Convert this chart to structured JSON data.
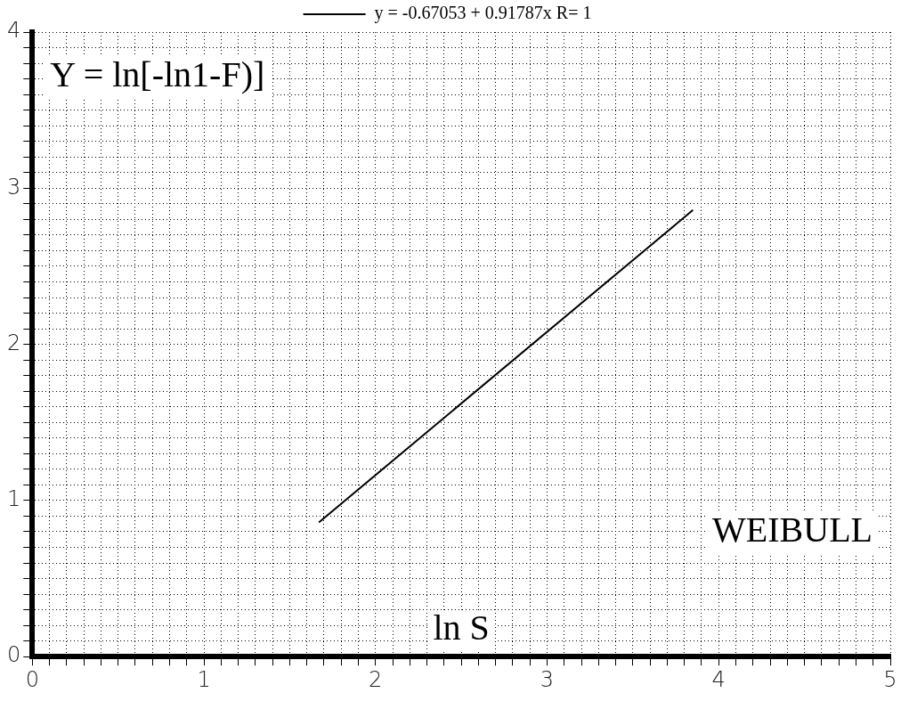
{
  "chart_data": {
    "type": "line",
    "xlabel": "ln S",
    "ylabel": "Y = ln[-ln1-F)]",
    "annotations": [
      "WEIBULL"
    ],
    "legend": "top",
    "grid": true,
    "marker": "none",
    "line_style": "solid",
    "xlim": [
      0,
      5
    ],
    "ylim": [
      0,
      4
    ],
    "xticks": [
      0,
      {
        "value": 0.1,
        "label": null
      },
      {
        "value": 0.2,
        "label": null
      },
      {
        "value": 0.3,
        "label": null
      },
      {
        "value": 0.4,
        "label": null
      },
      {
        "value": 0.5,
        "label": null
      },
      {
        "value": 0.6,
        "label": null
      },
      {
        "value": 0.7,
        "label": null
      },
      {
        "value": 0.8,
        "label": null
      },
      {
        "value": 0.9,
        "label": null
      },
      1,
      {
        "value": 1.1,
        "label": null
      },
      {
        "value": 1.2,
        "label": null
      },
      {
        "value": 1.3,
        "label": null
      },
      {
        "value": 1.4,
        "label": null
      },
      {
        "value": 1.5,
        "label": null
      },
      {
        "value": 1.6,
        "label": null
      },
      {
        "value": 1.7,
        "label": null
      },
      {
        "value": 1.8,
        "label": null
      },
      {
        "value": 1.9,
        "label": null
      },
      2,
      {
        "value": 2.1,
        "label": null
      },
      {
        "value": 2.2,
        "label": null
      },
      {
        "value": 2.3,
        "label": null
      },
      {
        "value": 2.4,
        "label": null
      },
      {
        "value": 2.5,
        "label": null
      },
      {
        "value": 2.6,
        "label": null
      },
      {
        "value": 2.7,
        "label": null
      },
      {
        "value": 2.8,
        "label": null
      },
      {
        "value": 2.9,
        "label": null
      },
      3,
      {
        "value": 3.1,
        "label": null
      },
      {
        "value": 3.2,
        "label": null
      },
      {
        "value": 3.3,
        "label": null
      },
      {
        "value": 3.4,
        "label": null
      },
      {
        "value": 3.5,
        "label": null
      },
      {
        "value": 3.6,
        "label": null
      },
      {
        "value": 3.7,
        "label": null
      },
      {
        "value": 3.8,
        "label": null
      },
      {
        "value": 3.9,
        "label": null
      },
      4,
      {
        "value": 4.1,
        "label": null
      },
      {
        "value": 4.2,
        "label": null
      },
      {
        "value": 4.3,
        "label": null
      },
      {
        "value": 4.4,
        "label": null
      },
      {
        "value": 4.5,
        "label": null
      },
      {
        "value": 4.6,
        "label": null
      },
      {
        "value": 4.7,
        "label": null
      },
      {
        "value": 4.8,
        "label": null
      },
      {
        "value": 4.9,
        "label": null
      },
      5
    ],
    "yticks": [
      0,
      {
        "value": 0.1,
        "label": null
      },
      {
        "value": 0.2,
        "label": null
      },
      {
        "value": 0.3,
        "label": null
      },
      {
        "value": 0.4,
        "label": null
      },
      {
        "value": 0.5,
        "label": null
      },
      {
        "value": 0.6,
        "label": null
      },
      {
        "value": 0.7,
        "label": null
      },
      {
        "value": 0.8,
        "label": null
      },
      {
        "value": 0.9,
        "label": null
      },
      1,
      {
        "value": 1.1,
        "label": null
      },
      {
        "value": 1.2,
        "label": null
      },
      {
        "value": 1.3,
        "label": null
      },
      {
        "value": 1.4,
        "label": null
      },
      {
        "value": 1.5,
        "label": null
      },
      {
        "value": 1.6,
        "label": null
      },
      {
        "value": 1.7,
        "label": null
      },
      {
        "value": 1.8,
        "label": null
      },
      {
        "value": 1.9,
        "label": null
      },
      2,
      {
        "value": 2.1,
        "label": null
      },
      {
        "value": 2.2,
        "label": null
      },
      {
        "value": 2.3,
        "label": null
      },
      {
        "value": 2.4,
        "label": null
      },
      {
        "value": 2.5,
        "label": null
      },
      {
        "value": 2.6,
        "label": null
      },
      {
        "value": 2.7,
        "label": null
      },
      {
        "value": 2.8,
        "label": null
      },
      {
        "value": 2.9,
        "label": null
      },
      3,
      {
        "value": 3.1,
        "label": null
      },
      {
        "value": 3.2,
        "label": null
      },
      {
        "value": 3.3,
        "label": null
      },
      {
        "value": 3.4,
        "label": null
      },
      {
        "value": 3.5,
        "label": null
      },
      {
        "value": 3.6,
        "label": null
      },
      {
        "value": 3.7,
        "label": null
      },
      {
        "value": 3.8,
        "label": null
      },
      {
        "value": 3.9,
        "label": null
      },
      4
    ],
    "series": [
      {
        "name": "y = -0.67053 + 0.91787x R= 1",
        "color": "#000000",
        "x": [
          1.67,
          3.85
        ],
        "values": [
          0.86,
          2.86
        ]
      }
    ]
  }
}
